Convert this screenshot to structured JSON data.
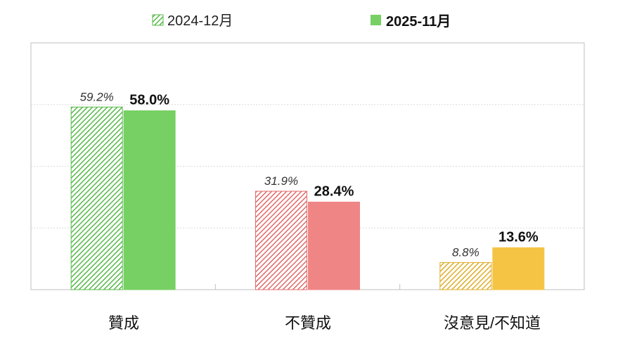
{
  "chart_data": {
    "type": "bar",
    "categories": [
      "贊成",
      "不贊成",
      "沒意見/不知道"
    ],
    "series": [
      {
        "name": "2024-12月",
        "values": [
          59.2,
          31.9,
          8.8
        ],
        "value_labels": [
          "59.2%",
          "31.9%",
          "8.8%"
        ],
        "style": "hatched"
      },
      {
        "name": "2025-11月",
        "values": [
          58.0,
          28.4,
          13.6
        ],
        "value_labels": [
          "58.0%",
          "28.4%",
          "13.6%"
        ],
        "style": "solid"
      }
    ],
    "category_colors": [
      "#77d063",
      "#ef8585",
      "#f5c445"
    ],
    "hatch_colors": [
      "#57b84a",
      "#e06a6a",
      "#e0ad2a"
    ],
    "ylim": [
      0,
      80
    ],
    "gridlines": [
      20,
      40,
      60,
      80
    ],
    "grid": true,
    "legend_position": "top-center",
    "legend_swatch_colors": [
      "#77d063",
      "#77d063"
    ]
  }
}
